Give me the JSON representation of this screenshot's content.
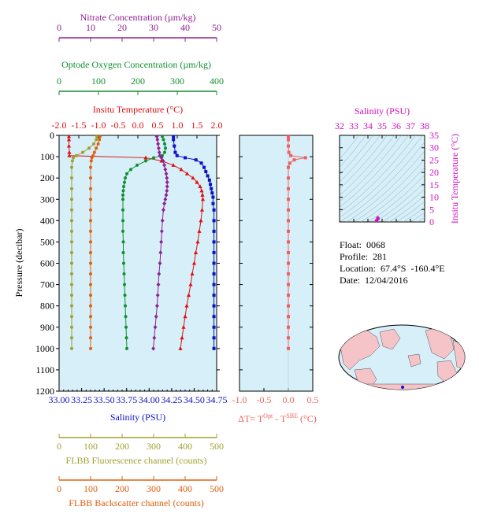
{
  "float_info": {
    "float": "Float:  0068",
    "profile": "Profile:  281",
    "location": "Location:  67.4°S  -160.4°E",
    "date": "Date:  12/04/2016"
  },
  "colors": {
    "salinity": "#1010c8",
    "temperature": "#e01010",
    "oxygen": "#109030",
    "nitrate": "#902090",
    "fluorescence": "#a0a030",
    "backscatter": "#e06010",
    "delta_t": "#f06060",
    "ts_axis": "#d010c0",
    "panel_bg": "#d6eff8"
  },
  "chart_data": [
    {
      "type": "line",
      "title": "",
      "y_axis": {
        "label": "Pressure (decibar)",
        "range": [
          0,
          1200
        ],
        "inverted": true,
        "ticks": [
          0,
          100,
          200,
          300,
          400,
          500,
          600,
          700,
          800,
          900,
          1000,
          1100,
          1200
        ]
      },
      "x_axes": [
        {
          "key": "salinity",
          "label": "Salinity (PSU)",
          "position": "bottom",
          "range": [
            33.0,
            34.75
          ],
          "ticks": [
            "33.00",
            "33.25",
            "33.50",
            "33.75",
            "34.00",
            "34.25",
            "34.50",
            "34.75"
          ]
        },
        {
          "key": "temperature",
          "label": "Insitu Temperature (°C)",
          "position": "top",
          "range": [
            -2.0,
            2.0
          ],
          "ticks": [
            "-2.0",
            "-1.5",
            "-1.0",
            "-0.5",
            "0.0",
            "0.5",
            "1.0",
            "1.5",
            "2.0"
          ]
        },
        {
          "key": "oxygen",
          "label": "Optode Oxygen Concentration (µm/kg)",
          "position": "top",
          "range": [
            0,
            400
          ],
          "ticks": [
            "0",
            "100",
            "200",
            "300",
            "400"
          ]
        },
        {
          "key": "nitrate",
          "label": "Nitrate Concentration (µm/kg)",
          "position": "top",
          "range": [
            0,
            50
          ],
          "ticks": [
            "0",
            "10",
            "20",
            "30",
            "40",
            "50"
          ]
        },
        {
          "key": "fluorescence",
          "label": "FLBB Fluorescence channel (counts)",
          "position": "bottom",
          "range": [
            0,
            500
          ],
          "ticks": [
            "0",
            "100",
            "200",
            "300",
            "400",
            "500"
          ]
        },
        {
          "key": "backscatter",
          "label": "FLBB Backscatter channel (counts)",
          "position": "bottom",
          "range": [
            0,
            500
          ],
          "ticks": [
            "0",
            "100",
            "200",
            "300",
            "400",
            "500"
          ]
        }
      ],
      "series": [
        {
          "key": "salinity",
          "x_axis": "salinity",
          "marker": "square",
          "pressure": [
            5,
            20,
            50,
            80,
            95,
            105,
            115,
            130,
            150,
            170,
            190,
            210,
            230,
            250,
            270,
            290,
            320,
            350,
            400,
            450,
            500,
            550,
            600,
            650,
            700,
            750,
            800,
            850,
            900,
            950,
            1000
          ],
          "values": [
            34.27,
            34.27,
            34.28,
            34.29,
            34.31,
            34.4,
            34.52,
            34.58,
            34.61,
            34.63,
            34.65,
            34.67,
            34.68,
            34.69,
            34.7,
            34.71,
            34.71,
            34.72,
            34.72,
            34.72,
            34.72,
            34.72,
            34.72,
            34.72,
            34.72,
            34.72,
            34.72,
            34.72,
            34.72,
            34.72,
            34.72
          ]
        },
        {
          "key": "temperature",
          "x_axis": "temperature",
          "marker": "triangle",
          "pressure": [
            5,
            20,
            50,
            80,
            95,
            105,
            120,
            140,
            160,
            180,
            200,
            220,
            240,
            260,
            280,
            300,
            350,
            400,
            450,
            500,
            550,
            600,
            650,
            700,
            750,
            800,
            850,
            900,
            950,
            1000
          ],
          "values": [
            -1.75,
            -1.75,
            -1.75,
            -1.74,
            -1.74,
            0.2,
            0.6,
            0.9,
            1.1,
            1.25,
            1.4,
            1.5,
            1.58,
            1.62,
            1.64,
            1.65,
            1.63,
            1.6,
            1.56,
            1.52,
            1.47,
            1.43,
            1.38,
            1.34,
            1.29,
            1.24,
            1.2,
            1.16,
            1.12,
            1.08
          ]
        },
        {
          "key": "oxygen",
          "x_axis": "oxygen",
          "marker": "circle",
          "pressure": [
            5,
            20,
            40,
            60,
            80,
            95,
            105,
            120,
            140,
            160,
            180,
            200,
            220,
            240,
            260,
            280,
            300,
            350,
            400,
            450,
            500,
            550,
            600,
            650,
            700,
            750,
            800,
            850,
            900,
            950,
            1000
          ],
          "values": [
            262,
            265,
            268,
            270,
            268,
            262,
            240,
            220,
            198,
            182,
            172,
            168,
            166,
            164,
            163,
            162,
            162,
            162,
            162,
            162,
            163,
            163,
            164,
            165,
            166,
            167,
            168,
            169,
            170,
            171,
            172
          ]
        },
        {
          "key": "nitrate",
          "x_axis": "nitrate",
          "marker": "diamond",
          "pressure": [
            5,
            20,
            40,
            60,
            80,
            95,
            105,
            120,
            140,
            160,
            180,
            200,
            220,
            240,
            260,
            280,
            300,
            320,
            350,
            400,
            450,
            500,
            550,
            600,
            650,
            700,
            750,
            800,
            850,
            900,
            950,
            1000
          ],
          "values": [
            31.0,
            31.2,
            31.4,
            31.6,
            31.8,
            32.0,
            32.5,
            33.0,
            33.4,
            33.7,
            34.0,
            34.2,
            34.3,
            34.3,
            34.2,
            34.0,
            33.7,
            33.4,
            33.1,
            32.8,
            32.6,
            32.4,
            32.2,
            32.0,
            31.7,
            31.5,
            31.3,
            31.1,
            30.8,
            30.5,
            30.2,
            29.9
          ]
        },
        {
          "key": "fluorescence",
          "x_axis": "fluorescence",
          "marker": "circle",
          "pressure": [
            5,
            20,
            40,
            60,
            80,
            95,
            105,
            120,
            150,
            200,
            250,
            300,
            350,
            400,
            450,
            500,
            550,
            600,
            650,
            700,
            750,
            800,
            850,
            900,
            950,
            1000
          ],
          "values": [
            120,
            118,
            110,
            95,
            75,
            55,
            45,
            42,
            40,
            40,
            40,
            40,
            40,
            40,
            40,
            40,
            40,
            40,
            40,
            40,
            40,
            40,
            40,
            40,
            40,
            40
          ]
        },
        {
          "key": "backscatter",
          "x_axis": "backscatter",
          "marker": "circle",
          "pressure": [
            5,
            20,
            40,
            60,
            80,
            95,
            105,
            120,
            150,
            200,
            250,
            300,
            350,
            400,
            450,
            500,
            550,
            600,
            650,
            700,
            750,
            800,
            850,
            900,
            950,
            1000
          ],
          "values": [
            130,
            128,
            124,
            118,
            112,
            108,
            104,
            102,
            100,
            100,
            100,
            100,
            100,
            100,
            100,
            100,
            100,
            100,
            100,
            100,
            100,
            100,
            100,
            100,
            100,
            100
          ]
        }
      ]
    },
    {
      "type": "line",
      "x_axis": {
        "label": "ΔT= T(Opt) - T(SBE) (°C)",
        "range": [
          -1.0,
          0.5
        ],
        "ticks": [
          "-1.0",
          "-0.5",
          "0.0",
          "0.5"
        ]
      },
      "y_axis": {
        "range": [
          0,
          1200
        ],
        "inverted": true
      },
      "series": [
        {
          "key": "delta_t",
          "marker": "square",
          "pressure": [
            5,
            20,
            50,
            80,
            95,
            105,
            115,
            130,
            150,
            200,
            250,
            300,
            350,
            400,
            450,
            500,
            550,
            600,
            650,
            700,
            750,
            800,
            850,
            900,
            950,
            1000
          ],
          "values": [
            0.0,
            0.0,
            0.0,
            0.01,
            0.05,
            0.35,
            0.12,
            0.03,
            0.0,
            0.0,
            0.0,
            0.0,
            0.0,
            0.0,
            0.0,
            0.0,
            0.0,
            0.0,
            0.0,
            0.0,
            0.0,
            0.0,
            0.0,
            0.0,
            0.0,
            0.0
          ]
        }
      ]
    },
    {
      "type": "scatter",
      "x_axis": {
        "label": "Salinity (PSU)",
        "range": [
          32,
          38
        ],
        "ticks": [
          "32",
          "33",
          "34",
          "35",
          "36",
          "37",
          "38"
        ]
      },
      "y_axis": {
        "label": "Insitu Temperature (°C)",
        "range": [
          0,
          35
        ],
        "ticks": [
          "0",
          "5",
          "10",
          "15",
          "20",
          "25",
          "30",
          "35"
        ]
      },
      "series": [
        {
          "key": "ts",
          "x": [
            34.6,
            34.7,
            34.7
          ],
          "y": [
            0.5,
            1.2,
            1.6
          ]
        }
      ]
    }
  ]
}
